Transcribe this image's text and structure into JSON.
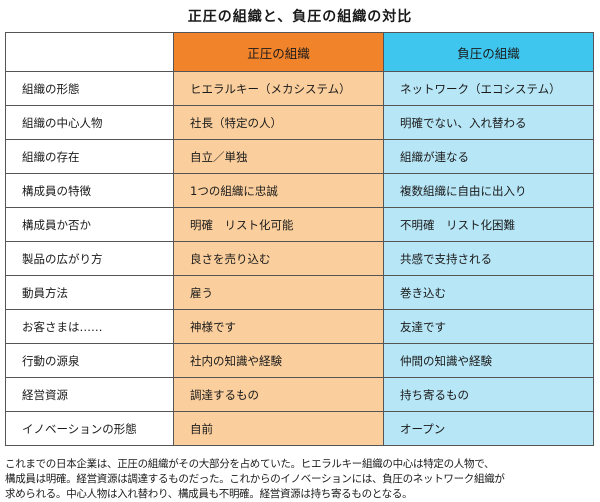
{
  "title": "正圧の組織と、負圧の組織の対比",
  "table": {
    "columns": [
      "",
      "正圧の組織",
      "負圧の組織"
    ],
    "rows": [
      {
        "label": "組織の形態",
        "positive": "ヒエラルキー（メカシステム）",
        "negative": "ネットワーク（エコシステム）"
      },
      {
        "label": "組織の中心人物",
        "positive": "社長（特定の人）",
        "negative": "明確でない、入れ替わる"
      },
      {
        "label": "組織の存在",
        "positive": "自立／単独",
        "negative": "組織が連なる"
      },
      {
        "label": "構成員の特徴",
        "positive": "1つの組織に忠誠",
        "negative": "複数組織に自由に出入り"
      },
      {
        "label": "構成員か否か",
        "positive": "明確　リスト化可能",
        "negative": "不明確　リスト化困難"
      },
      {
        "label": "製品の広がり方",
        "positive": "良さを売り込む",
        "negative": "共感で支持される"
      },
      {
        "label": "動員方法",
        "positive": "雇う",
        "negative": "巻き込む"
      },
      {
        "label": "お客さまは……",
        "positive": "神様です",
        "negative": "友達です"
      },
      {
        "label": "行動の源泉",
        "positive": "社内の知識や経験",
        "negative": "仲間の知識や経験"
      },
      {
        "label": "経営資源",
        "positive": "調達するもの",
        "negative": "持ち寄るもの"
      },
      {
        "label": "イノベーションの形態",
        "positive": "自前",
        "negative": "オープン"
      }
    ]
  },
  "caption": {
    "line1": "これまでの日本企業は、正圧の組織がその大部分を占めていた。ヒエラルキー組織の中心は特定の人物で、",
    "line2": "構成員は明確。経営資源は調達するものだった。これからのイノベーションには、負圧のネットワーク組織が",
    "line3": "求められる。中心人物は入れ替わり、構成員も不明確。経営資源は持ち寄るものとなる。"
  },
  "colors": {
    "positive_header": "#f1832a",
    "positive_cell": "#fbcf9d",
    "negative_header": "#3ec6ee",
    "negative_cell": "#b7e6f6"
  }
}
